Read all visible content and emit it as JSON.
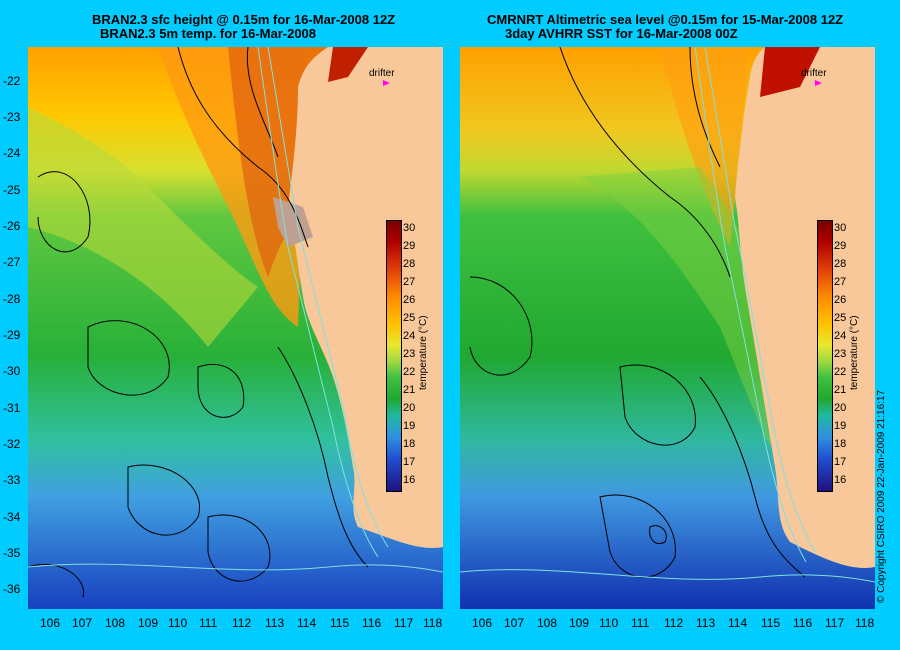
{
  "left_panel": {
    "title_line1": "BRAN2.3 sfc height @ 0.15m for 16-Mar-2008 12Z",
    "title_line2": "BRAN2.3 5m temp. for 16-Mar-2008"
  },
  "right_panel": {
    "title_line1": "CMRNRT Altimetric sea level  @0.15m  for 15-Mar-2008 12Z",
    "title_line2": "3day AVHRR SST for 16-Mar-2008 00Z"
  },
  "latitude_labels": [
    "-22",
    "-23",
    "-24",
    "-25",
    "-26",
    "-27",
    "-28",
    "-29",
    "-30",
    "-31",
    "-32",
    "-33",
    "-34",
    "-35",
    "-36"
  ],
  "longitude_labels": [
    "106",
    "107",
    "108",
    "109",
    "110",
    "111",
    "112",
    "113",
    "114",
    "115",
    "116",
    "117",
    "118"
  ],
  "colorbar": {
    "ticks": [
      "30",
      "29",
      "28",
      "27",
      "26",
      "25",
      "24",
      "23",
      "22",
      "21",
      "20",
      "19",
      "18",
      "17",
      "16"
    ],
    "label": "temperature (°C)"
  },
  "drifter_label": "drifter",
  "credit": "© Copyright CSIRO 2009   22-Jan-2009 21:16:17",
  "colors": {
    "background": "#00ccff",
    "land": "#f8c89a",
    "drifter_marker": "#ff00ff"
  }
}
